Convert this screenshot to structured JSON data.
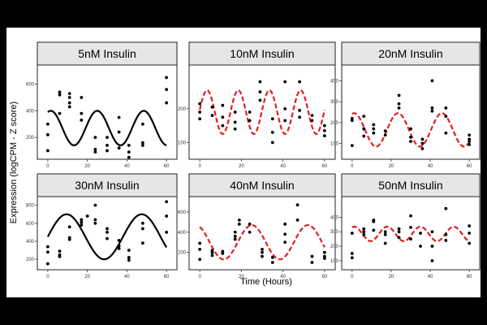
{
  "figure": {
    "ylabel": "Expression (logCPM - Z score)",
    "xlabel": "Time (Hours)"
  },
  "chart_data": [
    {
      "type": "scatter",
      "title": "5nM Insulin",
      "fit": "solid",
      "fit_color": "#000000",
      "xlim": [
        -2,
        62
      ],
      "ylim": [
        60,
        720
      ],
      "xticks": [
        0,
        20,
        40,
        60
      ],
      "yticks": [
        200,
        400,
        600
      ],
      "curve": {
        "mean": 270,
        "amp": 130,
        "period": 23.5,
        "phase": 1.5
      },
      "points": [
        [
          0,
          300
        ],
        [
          0,
          220
        ],
        [
          0,
          100
        ],
        [
          6,
          540
        ],
        [
          6,
          520
        ],
        [
          6,
          380
        ],
        [
          11,
          530
        ],
        [
          11,
          500
        ],
        [
          11,
          460
        ],
        [
          11,
          430
        ],
        [
          17,
          500
        ],
        [
          17,
          380
        ],
        [
          17,
          330
        ],
        [
          24,
          200
        ],
        [
          24,
          110
        ],
        [
          24,
          90
        ],
        [
          30,
          200
        ],
        [
          30,
          140
        ],
        [
          30,
          100
        ],
        [
          36,
          350
        ],
        [
          36,
          240
        ],
        [
          36,
          120
        ],
        [
          41,
          140
        ],
        [
          41,
          90
        ],
        [
          41,
          50
        ],
        [
          48,
          300
        ],
        [
          48,
          160
        ],
        [
          48,
          140
        ],
        [
          60,
          650
        ],
        [
          60,
          560
        ],
        [
          60,
          460
        ]
      ]
    },
    {
      "type": "scatter",
      "title": "10nM Insulin",
      "fit": "dashed",
      "fit_color": "#e02020",
      "xlim": [
        -2,
        62
      ],
      "ylim": [
        60,
        320
      ],
      "xticks": [
        0,
        20,
        40,
        60
      ],
      "yticks": [
        100,
        200
      ],
      "curve": {
        "mean": 190,
        "amp": 65,
        "period": 15,
        "phase": 3.5
      },
      "points": [
        [
          0,
          215
        ],
        [
          0,
          190
        ],
        [
          0,
          170
        ],
        [
          6,
          205
        ],
        [
          6,
          180
        ],
        [
          11,
          210
        ],
        [
          11,
          175
        ],
        [
          11,
          150
        ],
        [
          17,
          190
        ],
        [
          17,
          160
        ],
        [
          17,
          140
        ],
        [
          24,
          190
        ],
        [
          24,
          165
        ],
        [
          29,
          280
        ],
        [
          29,
          250
        ],
        [
          29,
          225
        ],
        [
          35,
          170
        ],
        [
          35,
          130
        ],
        [
          35,
          100
        ],
        [
          41,
          280
        ],
        [
          41,
          200
        ],
        [
          41,
          165
        ],
        [
          48,
          280
        ],
        [
          48,
          195
        ],
        [
          48,
          175
        ],
        [
          54,
          180
        ],
        [
          54,
          165
        ],
        [
          60,
          150
        ],
        [
          60,
          135
        ],
        [
          60,
          120
        ]
      ]
    },
    {
      "type": "scatter",
      "title": "20nM Insulin",
      "fit": "dashed",
      "fit_color": "#e02020",
      "xlim": [
        -2,
        62
      ],
      "ylim": [
        40,
        460
      ],
      "xticks": [
        0,
        20,
        40,
        60
      ],
      "yticks": [
        100,
        200,
        300,
        400
      ],
      "curve": {
        "mean": 165,
        "amp": 80,
        "period": 22.5,
        "phase": 1.0
      },
      "points": [
        [
          0,
          220
        ],
        [
          0,
          210
        ],
        [
          0,
          90
        ],
        [
          6,
          230
        ],
        [
          6,
          170
        ],
        [
          6,
          135
        ],
        [
          11,
          190
        ],
        [
          11,
          170
        ],
        [
          11,
          150
        ],
        [
          17,
          160
        ],
        [
          17,
          140
        ],
        [
          24,
          330
        ],
        [
          24,
          290
        ],
        [
          24,
          270
        ],
        [
          30,
          170
        ],
        [
          30,
          130
        ],
        [
          30,
          110
        ],
        [
          36,
          120
        ],
        [
          36,
          100
        ],
        [
          36,
          75
        ],
        [
          41,
          400
        ],
        [
          41,
          270
        ],
        [
          41,
          255
        ],
        [
          48,
          270
        ],
        [
          48,
          230
        ],
        [
          48,
          150
        ],
        [
          60,
          140
        ],
        [
          60,
          120
        ],
        [
          60,
          110
        ],
        [
          60,
          95
        ]
      ]
    },
    {
      "type": "scatter",
      "title": "30nM Insulin",
      "fit": "solid",
      "fit_color": "#000000",
      "xlim": [
        -2,
        62
      ],
      "ylim": [
        120,
        860
      ],
      "xticks": [
        0,
        20,
        40,
        60
      ],
      "yticks": [
        200,
        400,
        600,
        800
      ],
      "curve": {
        "mean": 450,
        "amp": 250,
        "period": 38,
        "phase": 9.5
      },
      "points": [
        [
          0,
          340
        ],
        [
          0,
          280
        ],
        [
          0,
          150
        ],
        [
          6,
          290
        ],
        [
          6,
          250
        ],
        [
          6,
          230
        ],
        [
          11,
          560
        ],
        [
          11,
          440
        ],
        [
          11,
          420
        ],
        [
          17,
          640
        ],
        [
          17,
          610
        ],
        [
          17,
          580
        ],
        [
          20,
          680
        ],
        [
          24,
          800
        ],
        [
          24,
          640
        ],
        [
          24,
          600
        ],
        [
          30,
          540
        ],
        [
          30,
          500
        ],
        [
          30,
          430
        ],
        [
          36,
          410
        ],
        [
          36,
          350
        ],
        [
          36,
          320
        ],
        [
          41,
          300
        ],
        [
          41,
          220
        ],
        [
          41,
          190
        ],
        [
          48,
          600
        ],
        [
          48,
          540
        ],
        [
          48,
          380
        ],
        [
          60,
          840
        ],
        [
          60,
          680
        ],
        [
          60,
          500
        ]
      ]
    },
    {
      "type": "scatter",
      "title": "40nM Insulin",
      "fit": "dashed",
      "fit_color": "#e02020",
      "xlim": [
        -2,
        62
      ],
      "ylim": [
        60,
        720
      ],
      "xticks": [
        0,
        20,
        40,
        60
      ],
      "yticks": [
        200,
        400,
        600
      ],
      "curve": {
        "mean": 300,
        "amp": 170,
        "period": 27,
        "phase": -2
      },
      "points": [
        [
          0,
          290
        ],
        [
          0,
          230
        ],
        [
          0,
          130
        ],
        [
          6,
          220
        ],
        [
          6,
          200
        ],
        [
          6,
          170
        ],
        [
          11,
          210
        ],
        [
          11,
          190
        ],
        [
          17,
          400
        ],
        [
          17,
          360
        ],
        [
          17,
          330
        ],
        [
          19,
          520
        ],
        [
          19,
          480
        ],
        [
          24,
          480
        ],
        [
          24,
          400
        ],
        [
          30,
          230
        ],
        [
          30,
          200
        ],
        [
          30,
          160
        ],
        [
          35,
          150
        ],
        [
          35,
          100
        ],
        [
          41,
          480
        ],
        [
          41,
          380
        ],
        [
          41,
          300
        ],
        [
          47,
          520
        ],
        [
          47,
          670
        ],
        [
          54,
          160
        ],
        [
          54,
          100
        ],
        [
          60,
          200
        ],
        [
          60,
          160
        ],
        [
          60,
          140
        ]
      ]
    },
    {
      "type": "scatter",
      "title": "50nM Insulin",
      "fit": "dashed",
      "fit_color": "#e02020",
      "xlim": [
        -2,
        62
      ],
      "ylim": [
        60,
        520
      ],
      "xticks": [
        0,
        20,
        40,
        60
      ],
      "yticks": [
        100,
        200,
        300,
        400
      ],
      "curve": {
        "mean": 285,
        "amp": 50,
        "period": 17,
        "phase": 1.0
      },
      "points": [
        [
          0,
          290
        ],
        [
          0,
          150
        ],
        [
          0,
          120
        ],
        [
          6,
          320
        ],
        [
          6,
          300
        ],
        [
          6,
          280
        ],
        [
          11,
          380
        ],
        [
          11,
          370
        ],
        [
          11,
          310
        ],
        [
          17,
          300
        ],
        [
          17,
          280
        ],
        [
          17,
          220
        ],
        [
          24,
          320
        ],
        [
          24,
          300
        ],
        [
          24,
          260
        ],
        [
          30,
          410
        ],
        [
          30,
          330
        ],
        [
          30,
          250
        ],
        [
          35,
          290
        ],
        [
          35,
          200
        ],
        [
          41,
          300
        ],
        [
          41,
          200
        ],
        [
          41,
          100
        ],
        [
          48,
          460
        ],
        [
          48,
          280
        ],
        [
          48,
          240
        ],
        [
          60,
          340
        ],
        [
          60,
          290
        ],
        [
          60,
          220
        ]
      ]
    }
  ]
}
